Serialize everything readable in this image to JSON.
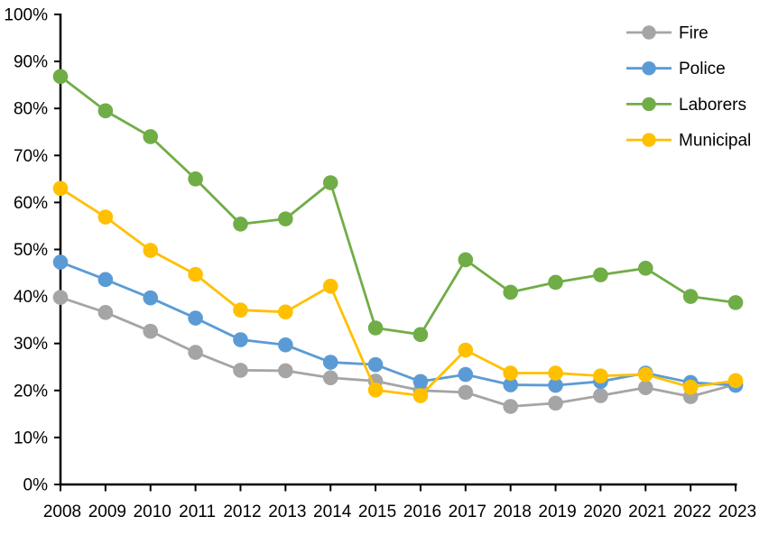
{
  "chart_data": {
    "type": "line",
    "title": "",
    "xlabel": "",
    "ylabel": "",
    "x": [
      "2008",
      "2009",
      "2010",
      "2011",
      "2012",
      "2013",
      "2014",
      "2015",
      "2016",
      "2017",
      "2018",
      "2019",
      "2020",
      "2021",
      "2022",
      "2023"
    ],
    "series": [
      {
        "name": "Fire",
        "color": "#A5A5A5",
        "values": [
          39.8,
          36.6,
          32.6,
          28.1,
          24.3,
          24.2,
          22.7,
          22.0,
          20.0,
          19.6,
          16.6,
          17.3,
          18.9,
          20.6,
          18.7,
          21.3
        ]
      },
      {
        "name": "Police",
        "color": "#5B9BD5",
        "values": [
          47.3,
          43.6,
          39.7,
          35.4,
          30.8,
          29.7,
          26.0,
          25.5,
          21.9,
          23.4,
          21.2,
          21.1,
          21.9,
          23.7,
          21.7,
          21.1
        ]
      },
      {
        "name": "Laborers",
        "color": "#70AD47",
        "values": [
          86.8,
          79.5,
          74.0,
          65.0,
          55.4,
          56.5,
          64.2,
          33.3,
          31.9,
          47.8,
          40.9,
          43.0,
          44.6,
          46.0,
          40.0,
          38.7
        ]
      },
      {
        "name": "Municipal",
        "color": "#FFC000",
        "values": [
          63.0,
          56.9,
          49.8,
          44.7,
          37.1,
          36.7,
          42.2,
          20.1,
          18.9,
          28.6,
          23.7,
          23.7,
          23.1,
          23.4,
          20.7,
          22.1
        ]
      }
    ],
    "ylim": [
      0,
      100
    ],
    "ytick_step": 10,
    "ytick_labels": [
      "0%",
      "10%",
      "20%",
      "30%",
      "40%",
      "50%",
      "60%",
      "70%",
      "80%",
      "90%",
      "100%"
    ],
    "grid": false,
    "legend_position": "top-right",
    "legend_entries": [
      "Fire",
      "Police",
      "Laborers",
      "Municipal"
    ],
    "axis_color": "#000000",
    "background_color": "#FFFFFF"
  }
}
